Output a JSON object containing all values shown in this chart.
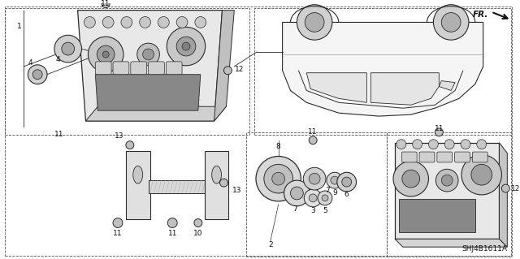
{
  "bg_color": "#ffffff",
  "line_color": "#2a2a2a",
  "text_color": "#111111",
  "diagram_code": "SHJ4B1611A",
  "fr_label": "FR.",
  "figsize": [
    6.4,
    3.19
  ],
  "dpi": 100
}
